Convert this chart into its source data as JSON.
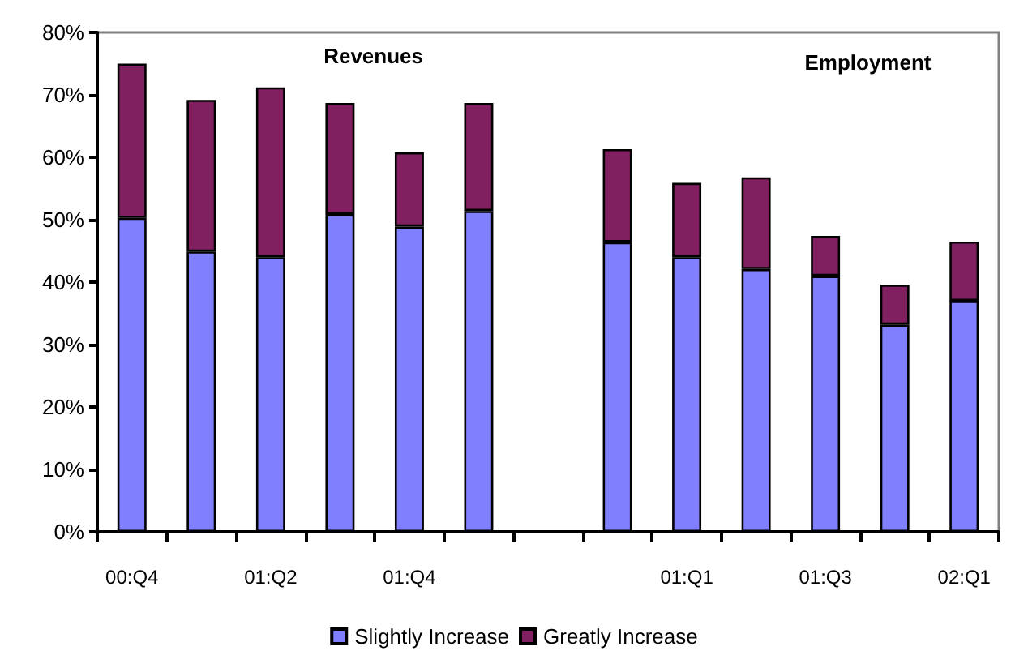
{
  "chart_data": {
    "type": "bar",
    "stacked": true,
    "categories": [
      "00:Q4",
      null,
      "01:Q2",
      null,
      "01:Q4",
      null,
      null,
      null,
      "01:Q1",
      null,
      "01:Q3",
      null,
      "02:Q1"
    ],
    "series": [
      {
        "name": "Slightly Increase",
        "color": "#8080ff",
        "values": [
          50.3,
          44.9,
          44.0,
          50.9,
          48.9,
          51.4,
          null,
          46.4,
          44.0,
          42.1,
          41.0,
          33.2,
          37.0
        ]
      },
      {
        "name": "Greatly Increase",
        "color": "#802060",
        "values": [
          24.7,
          24.3,
          27.2,
          17.8,
          11.9,
          17.3,
          null,
          14.9,
          11.9,
          14.7,
          6.4,
          6.4,
          9.5
        ]
      }
    ],
    "ylim": [
      0,
      80
    ],
    "yticks": [
      {
        "value": 0,
        "label": "0%"
      },
      {
        "value": 10,
        "label": "10%"
      },
      {
        "value": 20,
        "label": "20%"
      },
      {
        "value": 30,
        "label": "30%"
      },
      {
        "value": 40,
        "label": "40%"
      },
      {
        "value": 50,
        "label": "50%"
      },
      {
        "value": 60,
        "label": "60%"
      },
      {
        "value": 70,
        "label": "70%"
      },
      {
        "value": 80,
        "label": "80%"
      }
    ],
    "annotations": [
      "Revenues",
      "Employment"
    ],
    "grid": false,
    "legend": "bottom"
  }
}
